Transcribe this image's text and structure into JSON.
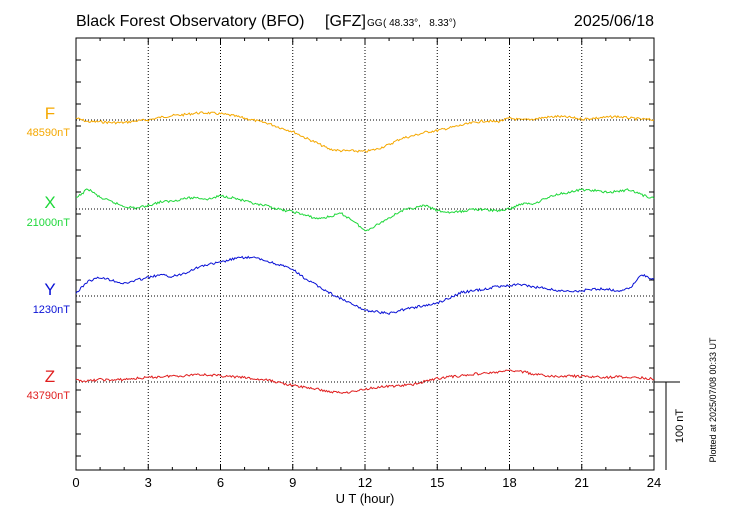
{
  "header": {
    "station": "Black Forest Observatory (BFO)",
    "institute": "[GFZ]",
    "coord_system": "GG",
    "coords": "( 48.33°,   8.33°)",
    "date": "2025/06/18"
  },
  "footer": {
    "plotted": "Plotted at 2025/07/08 00:33 UT"
  },
  "chart_data": {
    "type": "line",
    "xlabel": "U T (hour)",
    "xlim": [
      0,
      24
    ],
    "x_ticks": [
      "0",
      "3",
      "6",
      "9",
      "12",
      "15",
      "18",
      "21",
      "24"
    ],
    "grid": true,
    "scale_bar": {
      "label": "100 nT",
      "value_nT": 100
    },
    "series": [
      {
        "name": "F",
        "baseline_label": "48590nT",
        "baseline_nT": 48590,
        "color": "#f5a800",
        "x": [
          0,
          0.5,
          1,
          1.5,
          2,
          2.5,
          3,
          3.5,
          4,
          4.5,
          5,
          5.5,
          6,
          6.5,
          7,
          7.5,
          8,
          8.5,
          9,
          9.5,
          10,
          10.5,
          11,
          11.5,
          12,
          12.5,
          13,
          13.5,
          14,
          14.5,
          15,
          15.5,
          16,
          16.5,
          17,
          17.5,
          18,
          18.5,
          19,
          19.5,
          20,
          20.5,
          21,
          21.5,
          22,
          22.5,
          23,
          23.5,
          24
        ],
        "y": [
          48592,
          48588,
          48588,
          48587,
          48587,
          48589,
          48590,
          48593,
          48595,
          48596,
          48598,
          48598,
          48597,
          48595,
          48592,
          48589,
          48586,
          48581,
          48577,
          48570,
          48564,
          48557,
          48555,
          48555,
          48554,
          48557,
          48562,
          48569,
          48572,
          48576,
          48578,
          48581,
          48584,
          48587,
          48589,
          48588,
          48592,
          48590,
          48591,
          48593,
          48594,
          48593,
          48591,
          48592,
          48593,
          48594,
          48592,
          48591,
          48590
        ]
      },
      {
        "name": "X",
        "baseline_label": "21000nT",
        "baseline_nT": 21000,
        "color": "#1fd83a",
        "x": [
          0,
          0.5,
          1,
          1.5,
          2,
          2.5,
          3,
          3.5,
          4,
          4.5,
          5,
          5.5,
          6,
          6.5,
          7,
          7.5,
          8,
          8.5,
          9,
          9.5,
          10,
          10.5,
          11,
          11.5,
          12,
          12.5,
          13,
          13.5,
          14,
          14.5,
          15,
          15.5,
          16,
          16.5,
          17,
          17.5,
          18,
          18.5,
          19,
          19.5,
          20,
          20.5,
          21,
          21.5,
          22,
          22.5,
          23,
          23.5,
          24
        ],
        "y": [
          21012,
          21023,
          21013,
          21008,
          21003,
          21001,
          21004,
          21008,
          21009,
          21012,
          21013,
          21011,
          21015,
          21013,
          21009,
          21005,
          21003,
          20999,
          20997,
          20993,
          20989,
          20991,
          20995,
          20987,
          20975,
          20982,
          20990,
          20998,
          21001,
          21004,
          20998,
          20996,
          20997,
          21000,
          20999,
          20998,
          21000,
          21006,
          21006,
          21012,
          21017,
          21019,
          21022,
          21021,
          21019,
          21020,
          21022,
          21016,
          21012
        ]
      },
      {
        "name": "Y",
        "baseline_label": "1230nT",
        "baseline_nT": 1230,
        "color": "#0a12d6",
        "x": [
          0,
          0.5,
          1,
          1.5,
          2,
          2.5,
          3,
          3.5,
          4,
          4.5,
          5,
          5.5,
          6,
          6.5,
          7,
          7.5,
          8,
          8.5,
          9,
          9.5,
          10,
          10.5,
          11,
          11.5,
          12,
          12.5,
          13,
          13.5,
          14,
          14.5,
          15,
          15.5,
          16,
          16.5,
          17,
          17.5,
          18,
          18.5,
          19,
          19.5,
          20,
          20.5,
          21,
          21.5,
          22,
          22.5,
          23,
          23.5,
          24
        ],
        "y": [
          1233,
          1247,
          1251,
          1248,
          1244,
          1248,
          1251,
          1254,
          1252,
          1256,
          1262,
          1266,
          1268,
          1272,
          1274,
          1273,
          1269,
          1265,
          1260,
          1250,
          1242,
          1234,
          1227,
          1220,
          1214,
          1212,
          1210,
          1214,
          1217,
          1219,
          1222,
          1228,
          1234,
          1236,
          1238,
          1241,
          1242,
          1243,
          1240,
          1239,
          1236,
          1235,
          1236,
          1238,
          1238,
          1236,
          1239,
          1254,
          1249
        ]
      },
      {
        "name": "Z",
        "baseline_label": "43790nT",
        "baseline_nT": 43790,
        "color": "#e01e1e",
        "x": [
          0,
          0.5,
          1,
          1.5,
          2,
          2.5,
          3,
          3.5,
          4,
          4.5,
          5,
          5.5,
          6,
          6.5,
          7,
          7.5,
          8,
          8.5,
          9,
          9.5,
          10,
          10.5,
          11,
          11.5,
          12,
          12.5,
          13,
          13.5,
          14,
          14.5,
          15,
          15.5,
          16,
          16.5,
          17,
          17.5,
          18,
          18.5,
          19,
          19.5,
          20,
          20.5,
          21,
          21.5,
          22,
          22.5,
          23,
          23.5,
          24
        ],
        "y": [
          43792,
          43791,
          43793,
          43792,
          43793,
          43794,
          43795,
          43796,
          43797,
          43797,
          43799,
          43798,
          43797,
          43796,
          43795,
          43793,
          43792,
          43789,
          43786,
          43784,
          43782,
          43779,
          43778,
          43779,
          43782,
          43784,
          43785,
          43786,
          43787,
          43791,
          43794,
          43796,
          43797,
          43799,
          43800,
          43801,
          43803,
          43802,
          43799,
          43797,
          43796,
          43797,
          43796,
          43796,
          43795,
          43796,
          43795,
          43795,
          43793
        ]
      }
    ]
  }
}
